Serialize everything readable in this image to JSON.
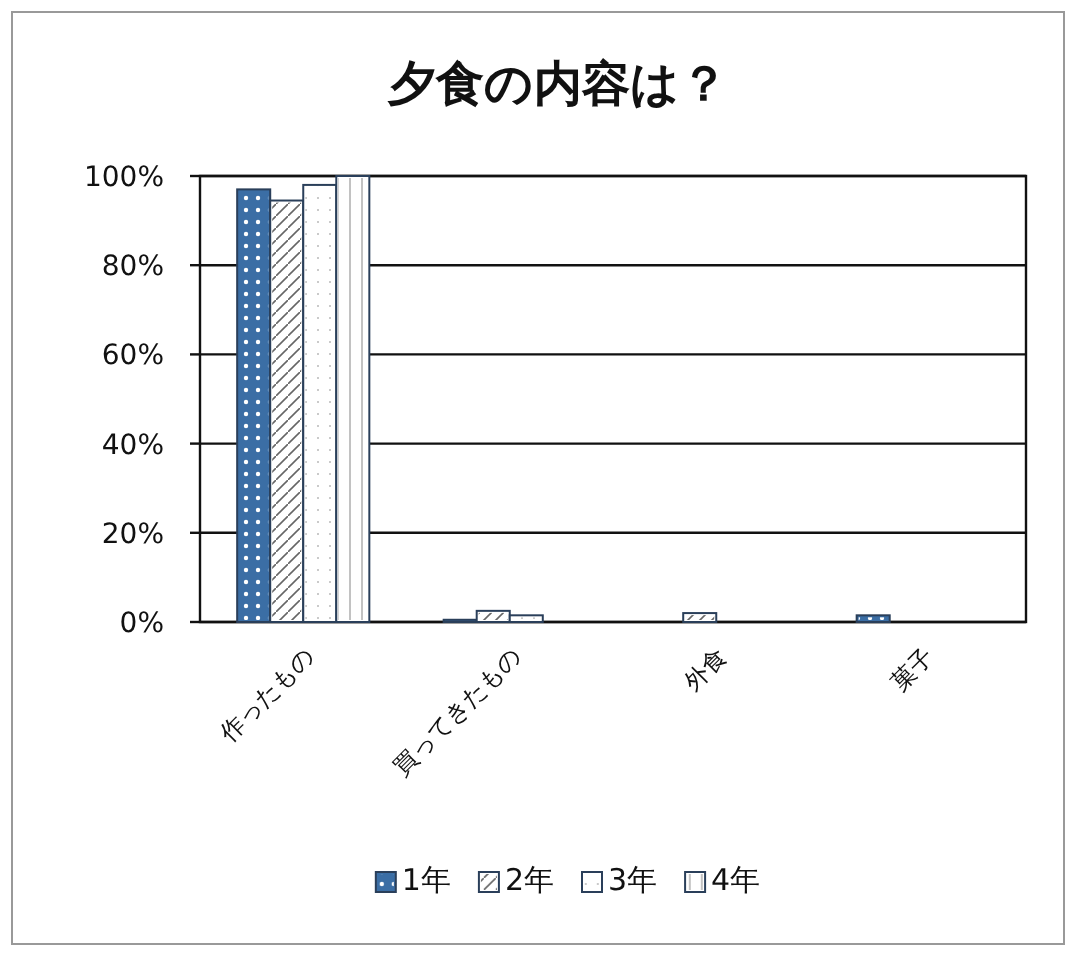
{
  "chart_data": {
    "type": "bar",
    "title": "夕食の内容は？",
    "categories": [
      "作ったもの",
      "買ってきたもの",
      "外食",
      "菓子"
    ],
    "series": [
      {
        "name": "1年",
        "color": "#3b6ea5",
        "values": [
          97,
          0.5,
          0,
          1.5
        ]
      },
      {
        "name": "2年",
        "color": "#ffffff",
        "values": [
          94.5,
          2.5,
          2,
          0
        ]
      },
      {
        "name": "3年",
        "color": "#ffffff",
        "values": [
          98,
          1.5,
          0,
          0
        ]
      },
      {
        "name": "4年",
        "color": "#ffffff",
        "values": [
          100,
          0,
          0,
          0
        ]
      }
    ],
    "ylim": [
      0,
      100
    ],
    "yticks": [
      {
        "value": 0,
        "label": "0%"
      },
      {
        "value": 20,
        "label": "20%"
      },
      {
        "value": 40,
        "label": "40%"
      },
      {
        "value": 60,
        "label": "60%"
      },
      {
        "value": 80,
        "label": "80%"
      },
      {
        "value": 100,
        "label": "100%"
      }
    ],
    "grid": "y",
    "legend": "bottom"
  }
}
